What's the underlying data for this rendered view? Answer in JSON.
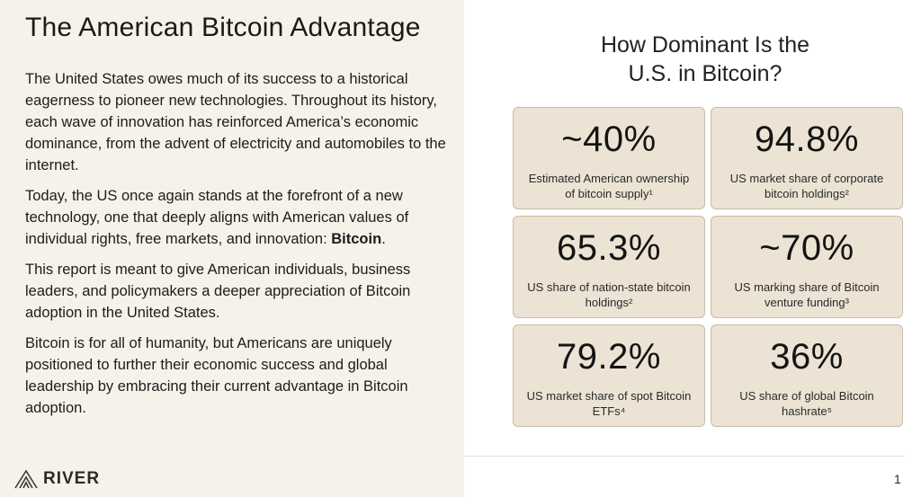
{
  "left": {
    "title": "The American Bitcoin Advantage",
    "paragraphs": [
      "The United States owes much of its success to a historical eagerness to pioneer new technologies. Throughout its history, each wave of innovation has reinforced America’s economic dominance, from the advent of electricity and automobiles to the internet.",
      "Today, the US once again stands at the forefront of a new technology, one that deeply aligns with American values of individual rights, free markets, and innovation: ",
      "This report is meant to give American individuals, business leaders, and policymakers a deeper appreciation of Bitcoin adoption in the United States.",
      "Bitcoin is for all of humanity, but Americans are uniquely positioned to further their economic success and global leadership by embracing their current advantage in Bitcoin adoption."
    ],
    "highlight": "Bitcoin",
    "highlight_end": "."
  },
  "right": {
    "title_line1": "How Dominant Is the",
    "title_line2": "U.S. in Bitcoin?",
    "stats": [
      {
        "value": "~40%",
        "label": "Estimated American ownership of bitcoin supply¹"
      },
      {
        "value": "94.8%",
        "label": "US market share of corporate bitcoin holdings²"
      },
      {
        "value": "65.3%",
        "label": "US share of nation-state bitcoin holdings²"
      },
      {
        "value": "~70%",
        "label": "US marking share of Bitcoin venture funding³"
      },
      {
        "value": "79.2%",
        "label": "US market share of spot Bitcoin ETFs⁴"
      },
      {
        "value": "36%",
        "label": "US share of global Bitcoin hashrate⁵"
      }
    ]
  },
  "footer": {
    "logo_text": "RIVER",
    "logo_icon": "river-mountain-icon",
    "page_number": "1"
  },
  "colors": {
    "left_panel": "#f6f2ea",
    "card_bg": "#ece3d4",
    "card_border": "#c9bca7"
  }
}
